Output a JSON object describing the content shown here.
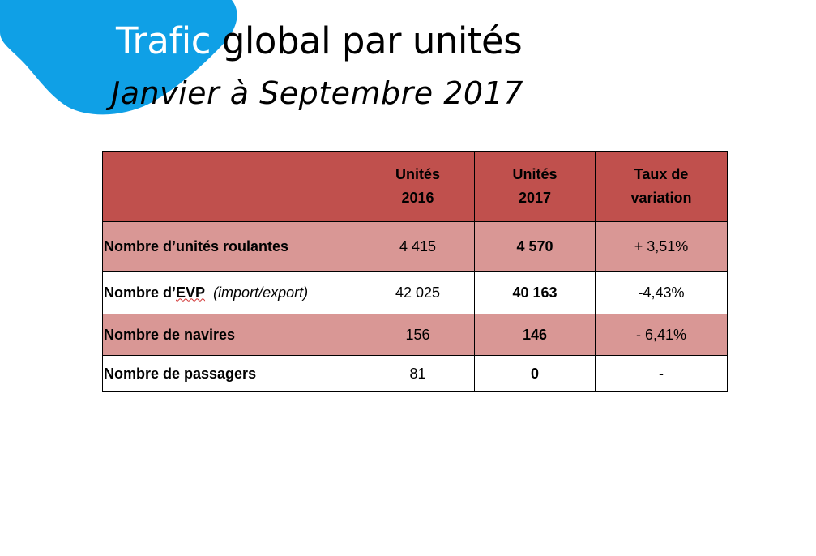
{
  "slide": {
    "title_accent": "Trafic",
    "title_rest": "global par unités",
    "subtitle": "Janvier à Septembre 2017",
    "colors": {
      "blob": "#0fa0e6",
      "header_fill": "#c0504d",
      "row_fill": "#d99795"
    }
  },
  "table": {
    "headers": {
      "label": "",
      "col2016": [
        "Unités",
        "2016"
      ],
      "col2017": [
        "Unités",
        "2017"
      ],
      "variation": [
        "Taux de",
        "variation"
      ]
    },
    "rows": [
      {
        "label": "Nombre d’unités roulantes",
        "v2016": "4 415",
        "v2017": "4 570",
        "variation": "+ 3,51%"
      },
      {
        "label_prefix": "Nombre d’",
        "label_spell": "EVP",
        "label_note": "(import/export)",
        "v2016": "42 025",
        "v2017": "40 163",
        "variation": "-4,43%"
      },
      {
        "label": "Nombre de navires",
        "v2016": "156",
        "v2017": "146",
        "variation": "- 6,41%"
      },
      {
        "label": "Nombre de passagers",
        "v2016": "81",
        "v2017": "0",
        "variation": "-"
      }
    ]
  }
}
